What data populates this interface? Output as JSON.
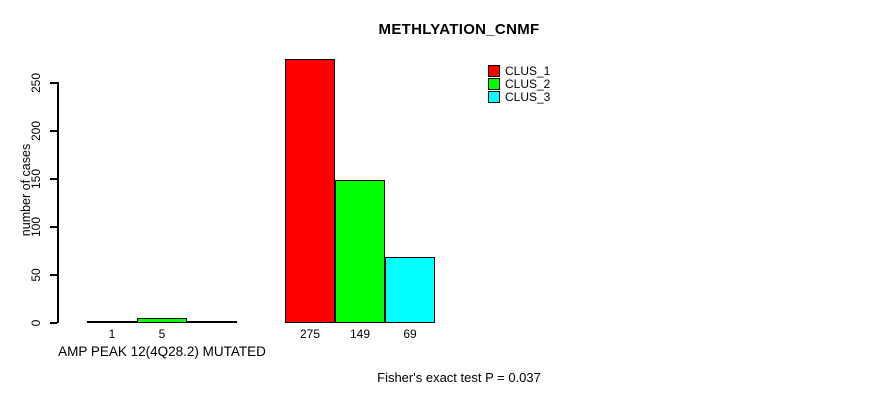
{
  "chart_data": {
    "type": "bar",
    "title": "METHLYATION_CNMF",
    "ylabel": "number of cases",
    "yticks": [
      0,
      50,
      100,
      150,
      200,
      250
    ],
    "ylim": [
      0,
      280
    ],
    "grid": false,
    "legend_position": "top-right",
    "series": [
      {
        "name": "CLUS_1",
        "color": "#ff0000"
      },
      {
        "name": "CLUS_2",
        "color": "#00ff00"
      },
      {
        "name": "CLUS_3",
        "color": "#00ffff"
      }
    ],
    "groups": [
      {
        "axis_label": "AMP PEAK 12(4Q28.2) MUTATED",
        "values": [
          1,
          5,
          0
        ],
        "value_labels": [
          "1",
          "5",
          ""
        ]
      },
      {
        "axis_label": "",
        "values": [
          275,
          149,
          69
        ],
        "value_labels": [
          "275",
          "149",
          "69"
        ]
      }
    ],
    "annotation": "Fisher's exact test P = 0.037"
  }
}
